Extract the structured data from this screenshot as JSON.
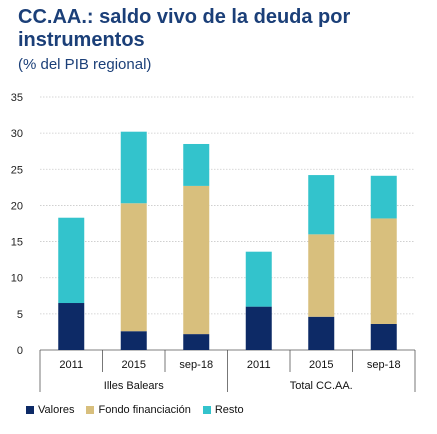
{
  "chart_data": {
    "type": "bar",
    "stacked": true,
    "title": "CC.AA.: saldo vivo de la deuda por instrumentos",
    "subtitle": "(% del PIB regional)",
    "ylim": [
      0,
      35
    ],
    "yticks": [
      0,
      5,
      10,
      15,
      20,
      25,
      30,
      35
    ],
    "grid": true,
    "legend_position": "bottom-left",
    "groups": [
      {
        "label": "Illes Balears",
        "categories": [
          "2011",
          "2015",
          "sep-18"
        ]
      },
      {
        "label": "Total CC.AA.",
        "categories": [
          "2011",
          "2015",
          "sep-18"
        ]
      }
    ],
    "categories": [
      "2011",
      "2015",
      "sep-18",
      "2011",
      "2015",
      "sep-18"
    ],
    "series": [
      {
        "name": "Valores",
        "color": "#0d2a66",
        "values": [
          6.5,
          2.6,
          2.2,
          6.0,
          4.6,
          3.6
        ]
      },
      {
        "name": "Fondo financiación",
        "color": "#d8bf7d",
        "values": [
          0.0,
          17.7,
          20.5,
          0.0,
          11.4,
          14.6
        ]
      },
      {
        "name": "Resto",
        "color": "#33c3cc",
        "values": [
          11.8,
          9.9,
          5.8,
          7.6,
          8.2,
          5.9
        ]
      }
    ]
  }
}
